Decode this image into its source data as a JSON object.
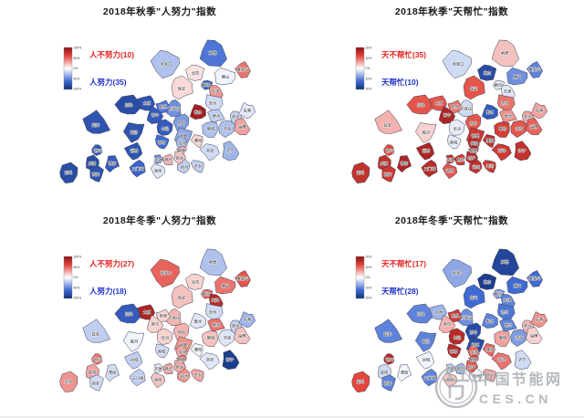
{
  "page": {
    "background": "#ffffff"
  },
  "palette": {
    "dark_red": "#8c1115",
    "red": "#e2453c",
    "mid": "#ffffff",
    "blue": "#3f6ad2",
    "dark_blue": "#122f78",
    "region_border": "#3c3c50",
    "region_label": "#111111",
    "legend_red_text": "#e62222",
    "legend_blue_text": "#2233cc",
    "tick_text": "#333333",
    "watermark_gray": "#a0a6ac"
  },
  "watermark": {
    "site_name": "中国节能网",
    "domain": "CES.CN"
  },
  "chart_data": {
    "type": "choropleth",
    "layout": "2x2 grid of identical region maps (Beijing-Tianjin-Hebei and surrounding / Fenwei Plain cities)",
    "value_encoding": "positive = red (不努力/不帮忙), negative = blue (努力/帮忙), magnitude 0-1 relative to colorbar max",
    "region_positions": {
      "张家口": [
        182,
        70,
        14
      ],
      "承德": [
        233,
        58,
        14
      ],
      "秦皇岛": [
        266,
        76,
        8
      ],
      "唐山": [
        247,
        84,
        10
      ],
      "北京": [
        214,
        80,
        9
      ],
      "廊坊": [
        226,
        93,
        6
      ],
      "天津": [
        236,
        100,
        8
      ],
      "保定": [
        199,
        97,
        11
      ],
      "沧州": [
        233,
        113,
        9
      ],
      "石家庄": [
        191,
        119,
        10
      ],
      "衡水": [
        217,
        123,
        8
      ],
      "德州": [
        237,
        127,
        8
      ],
      "滨州": [
        258,
        128,
        8
      ],
      "东营": [
        271,
        121,
        8
      ],
      "邢台": [
        199,
        135,
        9
      ],
      "邯郸": [
        201,
        149,
        9
      ],
      "聊城": [
        231,
        141,
        8
      ],
      "济南": [
        249,
        141,
        8
      ],
      "淄博": [
        265,
        139,
        8
      ],
      "济宁": [
        252,
        165,
        9
      ],
      "菏泽": [
        230,
        165,
        9
      ],
      "濮阳": [
        217,
        154,
        7
      ],
      "安阳": [
        200,
        157,
        7
      ],
      "鹤壁": [
        199,
        165,
        5
      ],
      "新乡": [
        197,
        173,
        7
      ],
      "焦作": [
        185,
        175,
        6
      ],
      "济源": [
        173,
        175,
        5
      ],
      "郑州": [
        202,
        183,
        7
      ],
      "开封": [
        217,
        182,
        7
      ],
      "洛阳": [
        173,
        187,
        8
      ],
      "三门峡": [
        151,
        185,
        9
      ],
      "阳泉": [
        179,
        117,
        7
      ],
      "太原": [
        161,
        113,
        9
      ],
      "晋中": [
        170,
        126,
        9
      ],
      "长治": [
        181,
        141,
        9
      ],
      "晋城": [
        177,
        156,
        8
      ],
      "临汾": [
        147,
        145,
        11
      ],
      "运城": [
        147,
        165,
        9
      ],
      "吕梁": [
        141,
        115,
        12
      ],
      "延安": [
        105,
        137,
        13
      ],
      "铜川": [
        107,
        165,
        6
      ],
      "咸阳": [
        101,
        179,
        8
      ],
      "西安": [
        105,
        191,
        8
      ],
      "宝鸡": [
        75,
        189,
        11
      ],
      "渭南": [
        123,
        179,
        8
      ]
    },
    "maps": [
      {
        "id": "autumn-effort",
        "title": "2018年秋季\"人努力\"指数",
        "legend_red": "人不努力(10)",
        "legend_blue": "人努力(35)",
        "colorbar_ticks": [
          "100%",
          "50%",
          "0%",
          "50%",
          "100%"
        ],
        "values": {
          "张家口": -0.25,
          "承德": -0.55,
          "秦皇岛": 0.45,
          "唐山": -0.05,
          "北京": 0.1,
          "廊坊": -0.65,
          "天津": 0.35,
          "保定": 0.12,
          "沧州": -0.15,
          "石家庄": -0.45,
          "衡水": 0.9,
          "德州": -0.2,
          "滨州": -0.2,
          "东营": -0.1,
          "邢台": -0.4,
          "邯郸": -0.35,
          "聊城": -0.25,
          "济南": -0.25,
          "淄博": 0.3,
          "济宁": -0.3,
          "菏泽": -0.15,
          "濮阳": 0.15,
          "安阳": -0.3,
          "鹤壁": 0.3,
          "新乡": 0.2,
          "焦作": 0.25,
          "济源": -0.45,
          "郑州": -0.2,
          "开封": -0.2,
          "洛阳": -0.1,
          "三门峡": -0.65,
          "阳泉": -0.55,
          "太原": -0.75,
          "晋中": -0.7,
          "长治": -0.7,
          "晋城": -0.6,
          "临汾": -0.75,
          "运城": -0.75,
          "吕梁": -0.8,
          "延安": -0.75,
          "铜川": -0.7,
          "咸阳": -0.8,
          "西安": -0.75,
          "宝鸡": -0.8,
          "渭南": -0.7
        }
      },
      {
        "id": "autumn-weather",
        "title": "2018年秋季\"天帮忙\"指数",
        "legend_red": "天不帮忙(35)",
        "legend_blue": "天帮忙(10)",
        "colorbar_ticks": [
          "20%",
          "10%",
          "0%",
          "10%",
          "20%"
        ],
        "values": {
          "张家口": -0.15,
          "承德": 0.2,
          "秦皇岛": -0.5,
          "唐山": -0.45,
          "北京": -0.8,
          "廊坊": -0.1,
          "天津": -0.1,
          "保定": 0.55,
          "沧州": 0.45,
          "石家庄": -0.15,
          "衡水": -0.7,
          "德州": 0.35,
          "滨州": 0.3,
          "东营": 0.3,
          "邢台": 0.55,
          "邯郸": 0.7,
          "聊城": 0.65,
          "济南": 0.55,
          "淄博": 0.5,
          "济宁": 0.75,
          "菏泽": 0.7,
          "濮阳": 0.75,
          "安阳": 0.8,
          "鹤壁": 0.85,
          "新乡": 0.8,
          "焦作": 0.7,
          "济源": 0.75,
          "郑州": 0.75,
          "开封": 0.7,
          "洛阳": 0.55,
          "三门峡": 0.8,
          "阳泉": 0.45,
          "太原": 0.55,
          "晋中": 0.85,
          "长治": -0.08,
          "晋城": -0.08,
          "临汾": 0.15,
          "运城": 0.85,
          "吕梁": 0.55,
          "延安": 0.25,
          "铜川": 0.6,
          "咸阳": 0.75,
          "西安": 0.7,
          "宝鸡": 0.75,
          "渭南": 0.85
        }
      },
      {
        "id": "winter-effort",
        "title": "2018年冬季\"人努力\"指数",
        "legend_red": "人不努力(27)",
        "legend_blue": "人努力(18)",
        "colorbar_ticks": [
          "100%",
          "50%",
          "0%",
          "50%",
          "100%"
        ],
        "values": {
          "张家口": 0.5,
          "承德": -0.25,
          "秦皇岛": 0.55,
          "唐山": 0.45,
          "北京": 0.15,
          "廊坊": 0.5,
          "天津": 0.8,
          "保定": 0.2,
          "沧州": -0.15,
          "石家庄": 0.25,
          "衡水": -0.1,
          "德州": 0.45,
          "滨州": -0.2,
          "东营": -0.3,
          "邢台": 0.25,
          "邯郸": 0.35,
          "聊城": 0.2,
          "济南": -0.1,
          "淄博": 0.2,
          "济宁": -0.9,
          "菏泽": -0.1,
          "濮阳": -0.05,
          "安阳": 0.3,
          "鹤壁": 0.5,
          "新乡": 0.3,
          "焦作": 0.3,
          "济源": -0.1,
          "郑州": 0.35,
          "开封": 0.3,
          "洛阳": 0.2,
          "三门峡": -0.2,
          "阳泉": 0.15,
          "太原": 0.85,
          "晋中": 0.15,
          "长治": 0.15,
          "晋城": -0.15,
          "临汾": -0.05,
          "运城": -0.2,
          "吕梁": -0.7,
          "延安": -0.2,
          "铜川": 0.45,
          "咸阳": 0.3,
          "西安": -0.15,
          "宝鸡": 0.35,
          "渭南": -0.15
        }
      },
      {
        "id": "winter-weather",
        "title": "2018年冬季\"天帮忙\"指数",
        "legend_red": "天不帮忙(17)",
        "legend_blue": "天帮忙(28)",
        "colorbar_ticks": [
          "20%",
          "10%",
          "0%",
          "10%",
          "20%"
        ],
        "values": {
          "张家口": -0.35,
          "承德": -0.85,
          "秦皇岛": -0.6,
          "唐山": -0.6,
          "北京": -0.9,
          "廊坊": -0.4,
          "天津": -0.5,
          "保定": -0.6,
          "沧州": -0.55,
          "石家庄": -0.45,
          "衡水": -0.5,
          "德州": -0.5,
          "滨州": 0.25,
          "东营": 0.35,
          "邢台": -0.8,
          "邯郸": -0.8,
          "聊城": 0.3,
          "济南": -0.4,
          "淄博": 0.15,
          "济宁": -0.15,
          "菏泽": 0.45,
          "濮阳": 0.5,
          "安阳": 0.5,
          "鹤壁": 0.65,
          "新乡": 0.55,
          "焦作": -0.3,
          "济源": -0.2,
          "郑州": -0.05,
          "开封": 0.3,
          "洛阳": 0.2,
          "三门峡": -0.5,
          "阳泉": 0.7,
          "太原": -0.3,
          "晋中": 0.25,
          "长治": 0.8,
          "晋城": 0.8,
          "临汾": -0.5,
          "运城": -0.05,
          "吕梁": -0.5,
          "延安": -0.5,
          "铜川": 0.8,
          "咸阳": -0.15,
          "西安": -0.5,
          "宝鸡": 0.6,
          "渭南": -0.05
        }
      }
    ]
  }
}
